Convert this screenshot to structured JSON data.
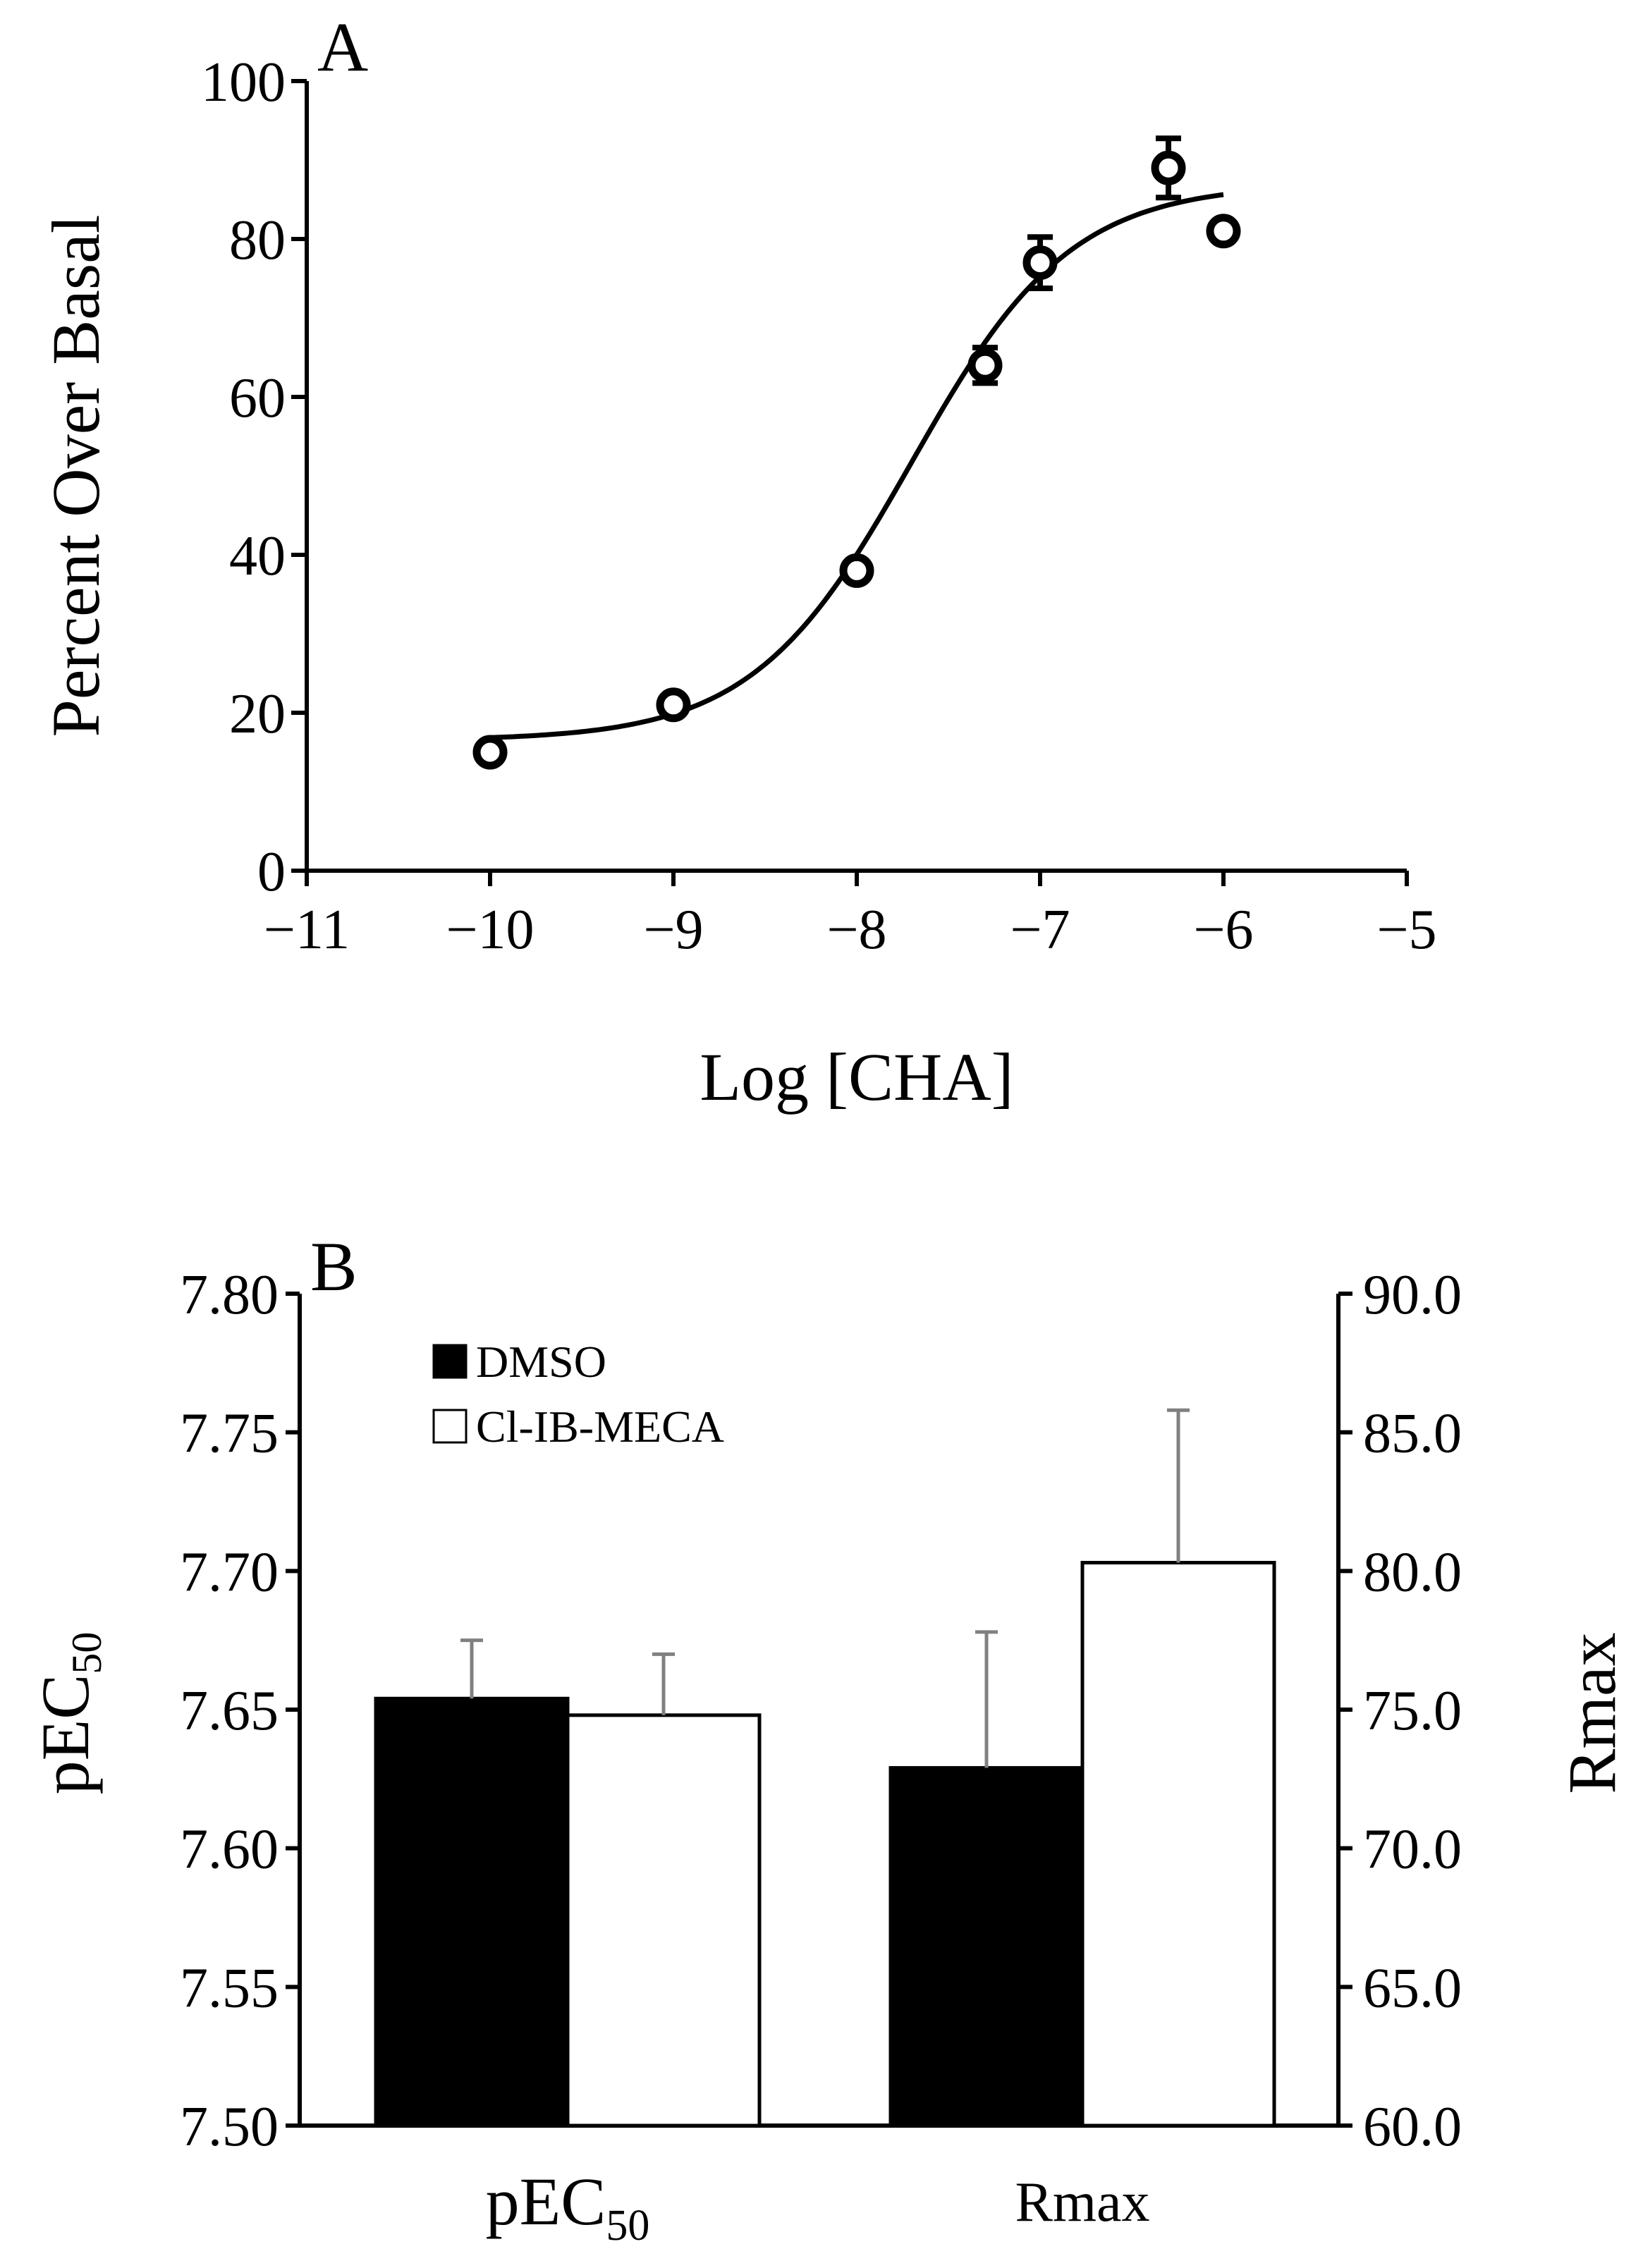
{
  "chart_data": [
    {
      "panel": "A",
      "type": "scatter",
      "xlabel": "Log [CHA]",
      "ylabel": "Percent Over Basal",
      "xlim": [
        -11,
        -5
      ],
      "ylim": [
        0,
        100
      ],
      "xticks": [
        -11,
        -10,
        -9,
        -8,
        -7,
        -6,
        -5
      ],
      "xtick_labels": [
        "−11",
        "−10",
        "−9",
        "−8",
        "−7",
        "−6",
        "−5"
      ],
      "yticks": [
        0,
        20,
        40,
        60,
        80,
        100
      ],
      "ytick_labels": [
        "0",
        "20",
        "40",
        "60",
        "80",
        "100"
      ],
      "series": [
        {
          "name": "CHA",
          "x": [
            -10,
            -9,
            -8,
            -7.3,
            -7,
            -6.3,
            -6
          ],
          "y": [
            15,
            21,
            38,
            64,
            77,
            89,
            81
          ],
          "err": [
            0,
            0,
            0,
            1,
            2,
            2.5,
            0
          ]
        }
      ],
      "fit": {
        "type": "sigmoid",
        "bottom": 16.5,
        "top": 87,
        "logEC50": -7.7,
        "hill": 1,
        "x_range": [
          -10,
          -6
        ]
      }
    },
    {
      "panel": "B",
      "type": "bar",
      "categories": [
        "pEC50",
        "Rmax"
      ],
      "category_labels": [
        {
          "main": "pEC",
          "sub": "50"
        },
        {
          "main": "Rmax",
          "sub": ""
        }
      ],
      "series": [
        {
          "name": "DMSO",
          "color": "#000000",
          "values": [
            7.654,
            72.9
          ],
          "err": [
            0.021,
            4.9
          ]
        },
        {
          "name": "Cl-IB-MECA",
          "color": "#ffffff",
          "values": [
            7.648,
            80.3
          ],
          "err": [
            0.022,
            5.5
          ]
        }
      ],
      "left_axis": {
        "label_main": "pEC",
        "label_sub": "50",
        "ylim": [
          7.5,
          7.8
        ],
        "ticks": [
          7.5,
          7.55,
          7.6,
          7.65,
          7.7,
          7.75,
          7.8
        ],
        "tick_labels": [
          "7.50",
          "7.55",
          "7.60",
          "7.65",
          "7.70",
          "7.75",
          "7.80"
        ]
      },
      "right_axis": {
        "label": "Rmax",
        "ylim": [
          60,
          90
        ],
        "ticks": [
          60,
          65,
          70,
          75,
          80,
          85,
          90
        ],
        "tick_labels": [
          "60.0",
          "65.0",
          "70.0",
          "75.0",
          "80.0",
          "85.0",
          "90.0"
        ]
      },
      "legend": [
        "DMSO",
        "Cl-IB-MECA"
      ],
      "legend_position": "top-left"
    }
  ],
  "panel_labels": {
    "a": "A",
    "b": "B"
  }
}
